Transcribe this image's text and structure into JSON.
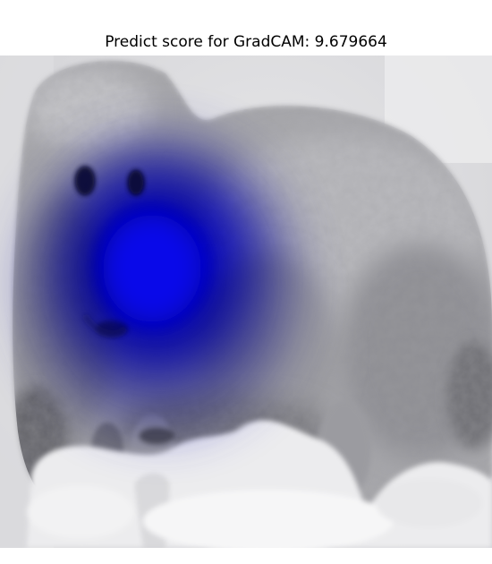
{
  "figure": {
    "title": "Predict score for GradCAM: 9.679664"
  },
  "colors": {
    "background": "#ffffff",
    "heatmap": "#0000ff",
    "fur": "#a9a9ad",
    "snow": "#eeeeef"
  },
  "image": {
    "subject": "white-fluffy-dog-in-snow",
    "overlay": "gradcam-heatmap"
  }
}
